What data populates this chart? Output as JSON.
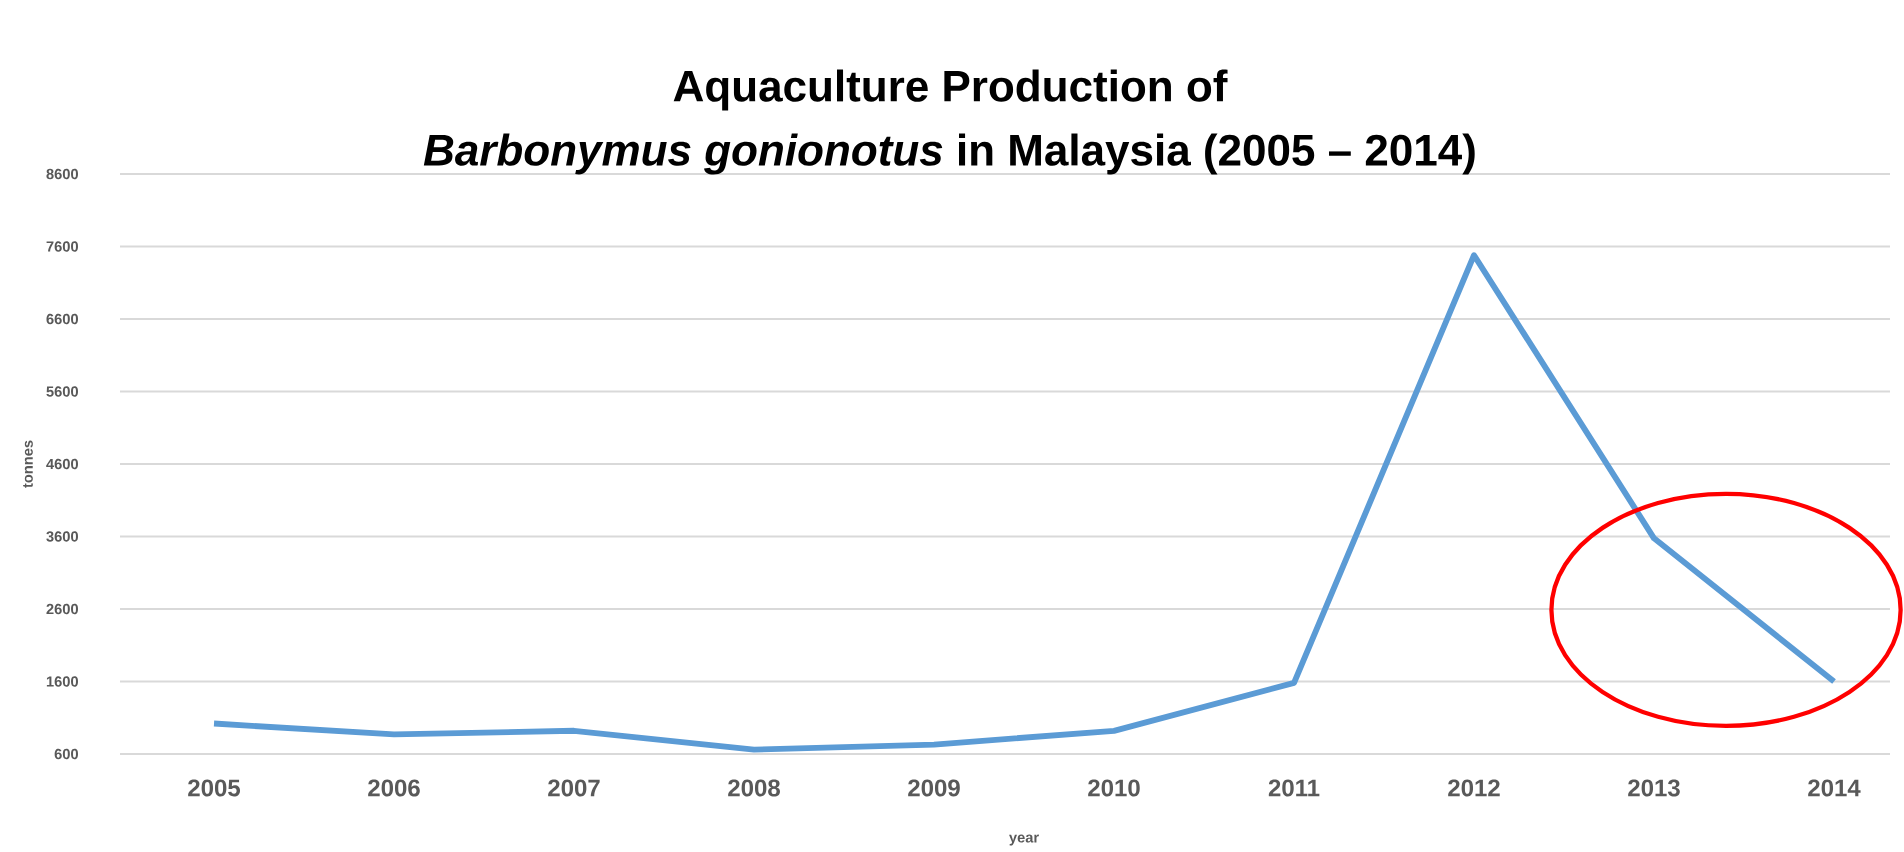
{
  "chart_data": {
    "type": "line",
    "title": "Aquaculture Production of",
    "subtitle": "*Barbonymus gonionotus* in Malaysia (2005 – 2014)",
    "xlabel": "year",
    "ylabel": "tonnes",
    "categories": [
      "2005",
      "2006",
      "2007",
      "2008",
      "2009",
      "2010",
      "2011",
      "2012",
      "2013",
      "2014"
    ],
    "series": [
      {
        "color": "#5b9bd5",
        "values": [
          1020,
          870,
          920,
          660,
          730,
          920,
          1580,
          7480,
          3575,
          1600
        ]
      }
    ],
    "ylim": [
      600,
      8600
    ],
    "yticks": [
      600,
      1600,
      2600,
      3600,
      4600,
      5600,
      6600,
      7600,
      8600
    ],
    "grid": "y"
  }
}
